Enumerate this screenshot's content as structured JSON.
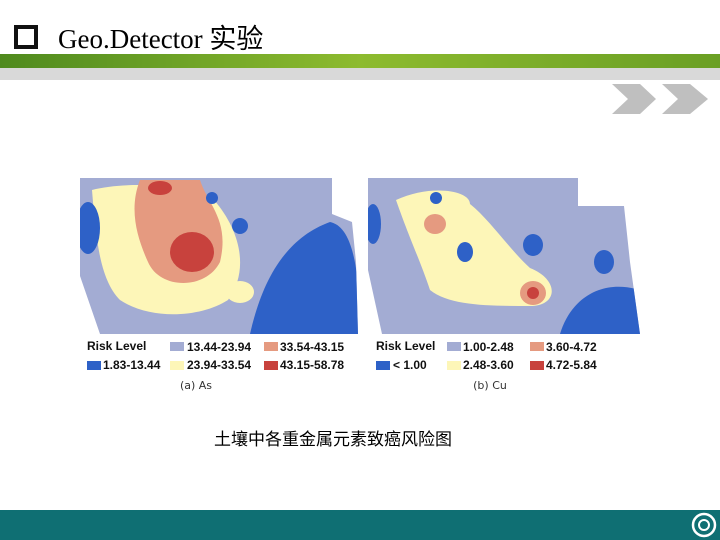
{
  "header": {
    "title": "Geo.Detector 实验"
  },
  "figure": {
    "panels": [
      {
        "label": "(a) As",
        "legend_title": "Risk Level",
        "legend": [
          "13.44-23.94",
          "33.54-43.15",
          "1.83-13.44",
          "23.94-33.54",
          "43.15-58.78"
        ]
      },
      {
        "label": "(b) Cu",
        "legend_title": "Risk Level",
        "legend": [
          "1.00-2.48",
          "3.60-4.72",
          "< 1.00",
          "2.48-3.60",
          "4.72-5.84"
        ]
      }
    ],
    "caption": "土壤中各重金属元素致癌风险图"
  }
}
